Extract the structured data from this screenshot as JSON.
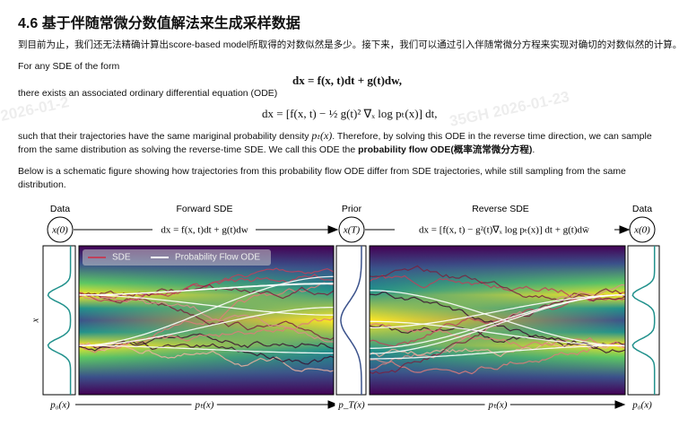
{
  "heading": "4.6 基于伴随常微分数值解法来生成采样数据",
  "intro": "到目前为止，我们还无法精确计算出score-based model所取得的对数似然是多少。接下来，我们可以通过引入伴随常微分方程来实现对确切的对数似然的计算。",
  "p1": "For any SDE of the form",
  "eq1": "dx = f(x, t)dt + g(t)dw,",
  "p2": "there exists an associated ordinary differential equation (ODE)",
  "eq2": "dx = [f(x, t) − ½ g(t)² ∇ₓ log pₜ(x)] dt,",
  "p3a": "such that their trajectories have the same mariginal probability density",
  "p3m": "pₜ(x)",
  "p3b": ". Therefore, by solving this ODE in the reverse time direction, we can sample from the same distribution as solving the reverse-time SDE. We call this ODE the",
  "p3bold": "probability flow ODE(概率流常微分方程)",
  "p3c": ".",
  "p4": "Below is a schematic figure showing how trajectories from this probability flow ODE differ from SDE trajectories, while still sampling from the same distribution.",
  "watermarks": [
    "2026-01-2",
    "35GH  2026-01-23"
  ],
  "figure": {
    "top_labels": [
      "Data",
      "Forward SDE",
      "Prior",
      "Reverse SDE",
      "Data"
    ],
    "nodes": [
      "x(0)",
      "x(T)",
      "x(0)"
    ],
    "forward_eq": "dx = f(x, t)dt + g(t)dw",
    "reverse_eq": "dx = [f(x, t) − g²(t)∇ₓ log pₜ(x)] dt + g(t)dw̄",
    "legend": [
      "SDE",
      "Probability Flow ODE"
    ],
    "y_label": "x",
    "bottom_labels": [
      "p₀(x)",
      "pₜ(x)",
      "p_T(x)",
      "pₜ(x)",
      "p₀(x)"
    ]
  }
}
